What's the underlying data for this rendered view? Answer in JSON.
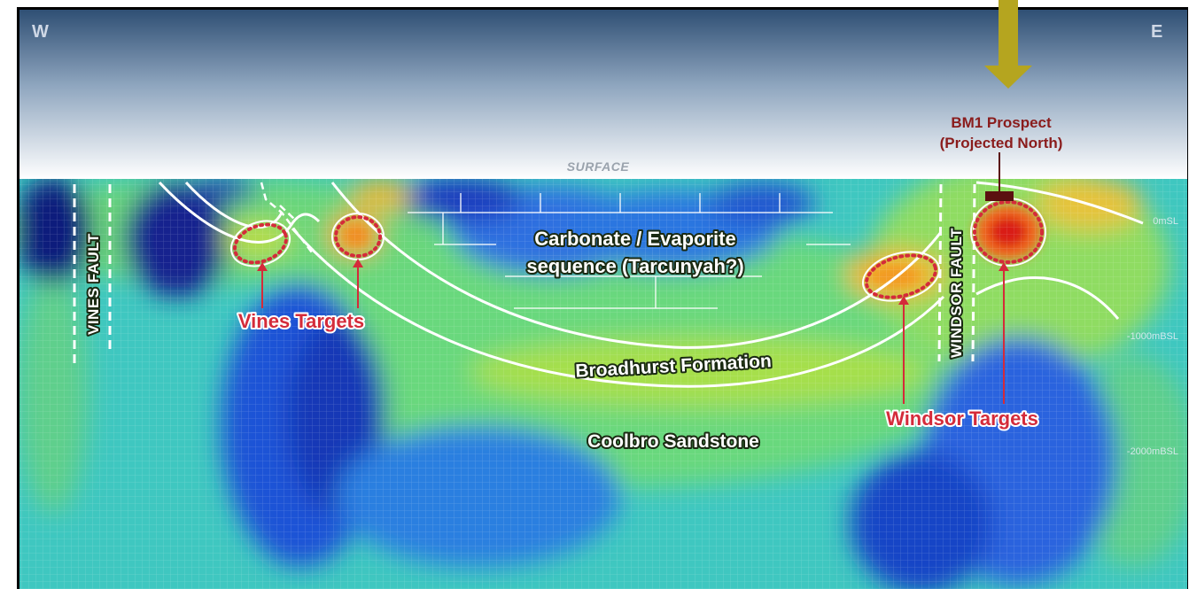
{
  "compass": {
    "west": "W",
    "east": "E"
  },
  "surface_label": "SURFACE",
  "depth_labels": [
    "0mSL",
    "-1000mBSL",
    "-2000mBSL"
  ],
  "faults": {
    "vines": "VINES FAULT",
    "windsor": "WINDSOR FAULT"
  },
  "formations": {
    "carbonate_line1": "Carbonate / Evaporite",
    "carbonate_line2": "sequence (Tarcunyah?)",
    "broadhurst": "Broadhurst Formation",
    "coolbro": "Coolbro Sandstone"
  },
  "targets": {
    "vines": "Vines Targets",
    "windsor": "Windsor Targets"
  },
  "prospect": {
    "line1": "BM1 Prospect",
    "line2": "(Projected North)"
  },
  "colors": {
    "sky_top": "#2f4f74",
    "sky_bottom": "#ffffff",
    "background_model": "#3fc7c0",
    "arrow": "#b5a51f",
    "target_ring": "#d42b3a",
    "prospect_label": "#8a1c1c"
  }
}
